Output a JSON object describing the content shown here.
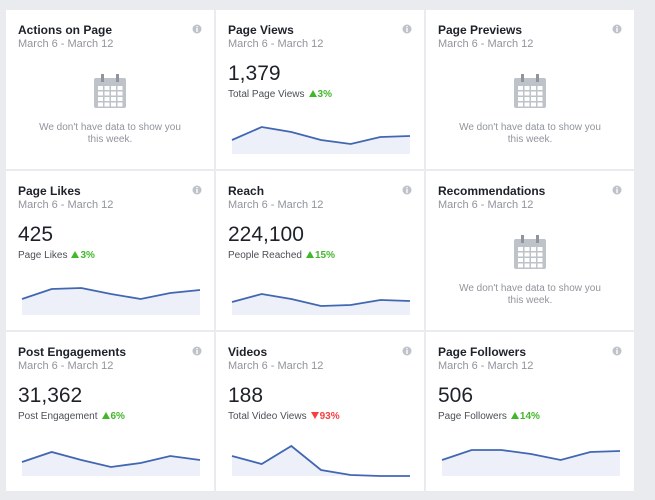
{
  "cards": [
    {
      "title": "Actions on Page",
      "date": "March 6 - March 12",
      "empty": "We don't have data to show you this week."
    },
    {
      "title": "Page Views",
      "date": "March 6 - March 12",
      "value": "1,379",
      "label": "Total Page Views",
      "change": "3%",
      "direction": "up",
      "sparkline": [
        14,
        27,
        22,
        14,
        10,
        17,
        18
      ]
    },
    {
      "title": "Page Previews",
      "date": "March 6 - March 12",
      "empty": "We don't have data to show you this week."
    },
    {
      "title": "Page Likes",
      "date": "March 6 - March 12",
      "value": "425",
      "label": "Page Likes",
      "change": "3%",
      "direction": "up",
      "sparkline": [
        16,
        26,
        27,
        21,
        16,
        22,
        25
      ]
    },
    {
      "title": "Reach",
      "date": "March 6 - March 12",
      "value": "224,100",
      "label": "People Reached",
      "change": "15%",
      "direction": "up",
      "sparkline": [
        13,
        21,
        16,
        9,
        10,
        15,
        14
      ]
    },
    {
      "title": "Recommendations",
      "date": "March 6 - March 12",
      "empty": "We don't have data to show you this week."
    },
    {
      "title": "Post Engagements",
      "date": "March 6 - March 12",
      "value": "31,362",
      "label": "Post Engagement",
      "change": "6%",
      "direction": "up",
      "sparkline": [
        14,
        24,
        16,
        9,
        13,
        20,
        16
      ]
    },
    {
      "title": "Videos",
      "date": "March 6 - March 12",
      "value": "188",
      "label": "Total Video Views",
      "change": "93%",
      "direction": "down",
      "sparkline": [
        20,
        12,
        30,
        6,
        1,
        0,
        0
      ]
    },
    {
      "title": "Page Followers",
      "date": "March 6 - March 12",
      "value": "506",
      "label": "Page Followers",
      "change": "14%",
      "direction": "up",
      "sparkline": [
        16,
        26,
        26,
        22,
        16,
        24,
        25
      ]
    }
  ]
}
